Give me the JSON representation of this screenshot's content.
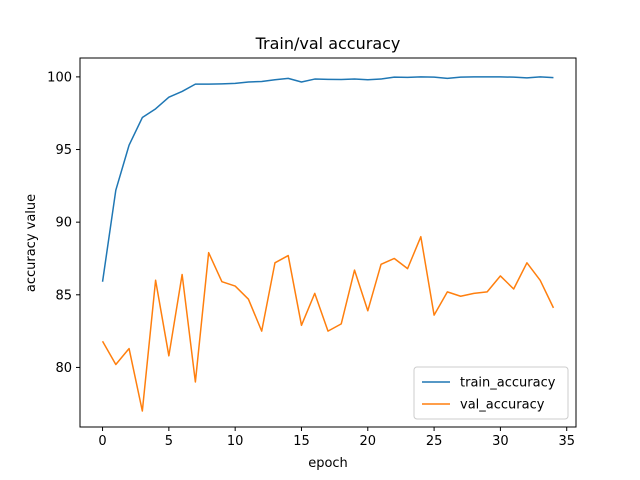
{
  "chart_data": {
    "type": "line",
    "title": "Train/val accuracy",
    "xlabel": "epoch",
    "ylabel": "accuracy value",
    "xlim": [
      -1.7,
      35.7
    ],
    "ylim": [
      75.9,
      101.3
    ],
    "xticks": [
      0,
      5,
      10,
      15,
      20,
      25,
      30,
      35
    ],
    "yticks": [
      80,
      85,
      90,
      95,
      100
    ],
    "grid": false,
    "legend_position": "lower-right",
    "x": [
      0,
      1,
      2,
      3,
      4,
      5,
      6,
      7,
      8,
      9,
      10,
      11,
      12,
      13,
      14,
      15,
      16,
      17,
      18,
      19,
      20,
      21,
      22,
      23,
      24,
      25,
      26,
      27,
      28,
      29,
      30,
      31,
      32,
      33,
      34
    ],
    "series": [
      {
        "name": "train_accuracy",
        "color": "#1f77b4",
        "values": [
          85.9,
          92.2,
          95.3,
          97.2,
          97.8,
          98.6,
          99.0,
          99.5,
          99.5,
          99.52,
          99.55,
          99.65,
          99.68,
          99.8,
          99.9,
          99.65,
          99.85,
          99.83,
          99.82,
          99.85,
          99.8,
          99.85,
          99.98,
          99.97,
          100.0,
          99.98,
          99.9,
          99.98,
          100.0,
          100.0,
          100.0,
          99.98,
          99.93,
          100.0,
          99.95
        ]
      },
      {
        "name": "val_accuracy",
        "color": "#ff7f0e",
        "values": [
          81.8,
          80.2,
          81.3,
          77.0,
          86.0,
          80.8,
          86.4,
          79.0,
          87.9,
          85.9,
          85.6,
          84.7,
          82.5,
          87.2,
          87.7,
          82.9,
          85.1,
          82.5,
          83.0,
          86.7,
          83.9,
          87.1,
          87.5,
          86.8,
          89.0,
          83.6,
          85.2,
          84.9,
          85.1,
          85.2,
          86.3,
          85.4,
          87.2,
          86.0,
          84.1
        ]
      }
    ]
  }
}
